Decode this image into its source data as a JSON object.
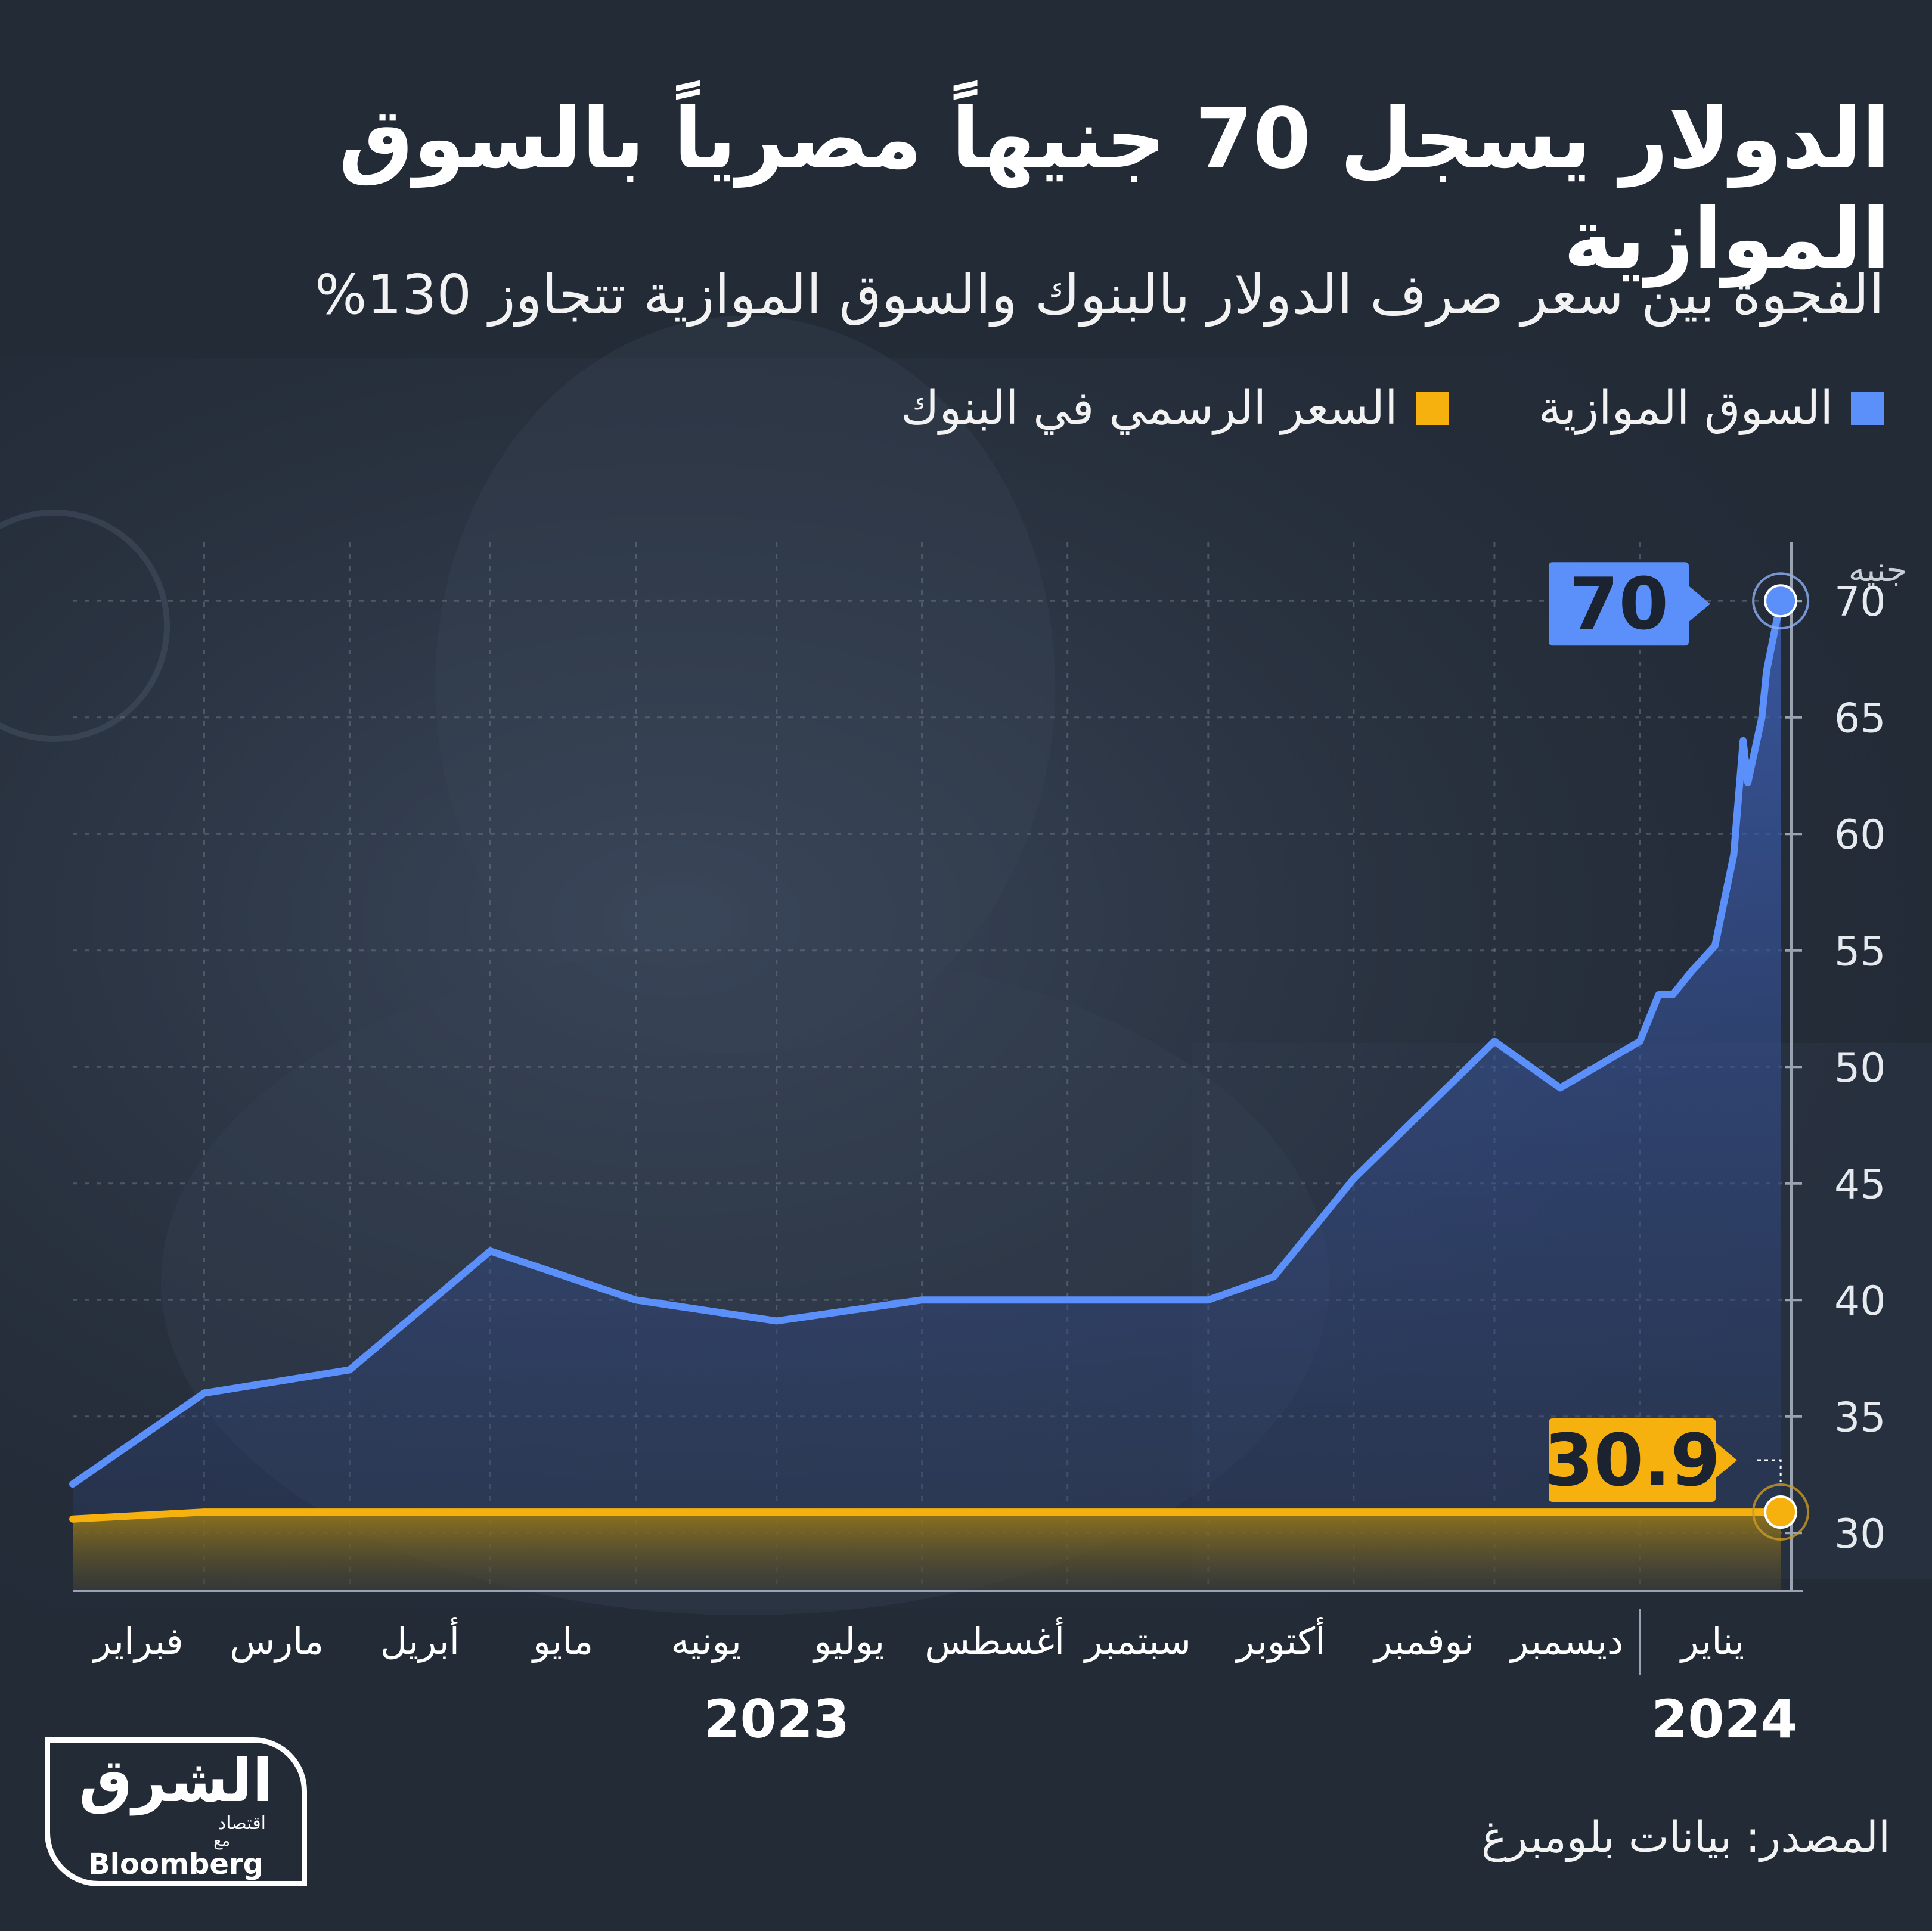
{
  "title": "الدولار يسجل 70 جنيهاً مصرياً بالسوق الموازية",
  "subtitle": "الفجوة بين سعر صرف الدولار بالبنوك والسوق الموازية تتجاوز 130%",
  "legend": {
    "parallel_label": "السوق الموازية",
    "official_label": "السعر الرسمي في البنوك"
  },
  "colors": {
    "background": "#232b37",
    "parallel": "#5b8ff9",
    "official": "#f6b10f",
    "grid": "#6b7688",
    "text": "#ffffff"
  },
  "source": "المصدر: بيانات بلومبرغ",
  "logo": {
    "name": "الشرق",
    "sub": "اقتصاد",
    "with": "مع",
    "partner": "Bloomberg"
  },
  "chart_data": {
    "type": "line",
    "ylabel": "جنيه",
    "ylim": [
      27.5,
      72
    ],
    "yticks": [
      30,
      35,
      40,
      45,
      50,
      55,
      60,
      65,
      70
    ],
    "grid": true,
    "legend_position": "top-right",
    "x_start": "2023-02-01",
    "months": [
      {
        "date": "2023-02-01",
        "label": "فبراير"
      },
      {
        "date": "2023-03-01",
        "label": "مارس"
      },
      {
        "date": "2023-04-01",
        "label": "أبريل"
      },
      {
        "date": "2023-05-01",
        "label": "مايو"
      },
      {
        "date": "2023-06-01",
        "label": "يونيه"
      },
      {
        "date": "2023-07-01",
        "label": "يوليو"
      },
      {
        "date": "2023-08-01",
        "label": "أغسطس"
      },
      {
        "date": "2023-09-01",
        "label": "سبتمبر"
      },
      {
        "date": "2023-10-01",
        "label": "أكتوبر"
      },
      {
        "date": "2023-11-01",
        "label": "نوفمبر"
      },
      {
        "date": "2023-12-01",
        "label": "ديسمبر"
      },
      {
        "date": "2024-01-01",
        "label": "يناير"
      }
    ],
    "years": [
      {
        "label": "2023",
        "date": "2023-07-01"
      },
      {
        "label": "2024",
        "date": "2024-01-19"
      }
    ],
    "year_divider_date": "2024-01-01",
    "x_end": "2024-02-01",
    "series": [
      {
        "name": "السوق الموازية",
        "color": "#5b8ff9",
        "points": [
          [
            "2023-02-01",
            32.1
          ],
          [
            "2023-03-01",
            36.0
          ],
          [
            "2023-04-01",
            37.0
          ],
          [
            "2023-05-01",
            42.1
          ],
          [
            "2023-06-01",
            40.0
          ],
          [
            "2023-07-01",
            39.1
          ],
          [
            "2023-08-01",
            40.0
          ],
          [
            "2023-09-01",
            40.0
          ],
          [
            "2023-10-01",
            40.0
          ],
          [
            "2023-10-15",
            41.0
          ],
          [
            "2023-11-01",
            45.2
          ],
          [
            "2023-12-01",
            51.1
          ],
          [
            "2023-12-15",
            49.1
          ],
          [
            "2024-01-01",
            51.1
          ],
          [
            "2024-01-05",
            53.1
          ],
          [
            "2024-01-08",
            53.1
          ],
          [
            "2024-01-12",
            54.1
          ],
          [
            "2024-01-17",
            55.2
          ],
          [
            "2024-01-21",
            59.1
          ],
          [
            "2024-01-23",
            64.0
          ],
          [
            "2024-01-24",
            62.2
          ],
          [
            "2024-01-27",
            65.0
          ],
          [
            "2024-01-28",
            67.0
          ],
          [
            "2024-01-31",
            70.0
          ]
        ],
        "end_label": "70"
      },
      {
        "name": "السعر الرسمي في البنوك",
        "color": "#f6b10f",
        "points": [
          [
            "2023-02-01",
            30.6
          ],
          [
            "2023-02-15",
            30.75
          ],
          [
            "2023-03-01",
            30.9
          ],
          [
            "2024-01-31",
            30.9
          ]
        ],
        "end_label": "30.9"
      }
    ]
  }
}
